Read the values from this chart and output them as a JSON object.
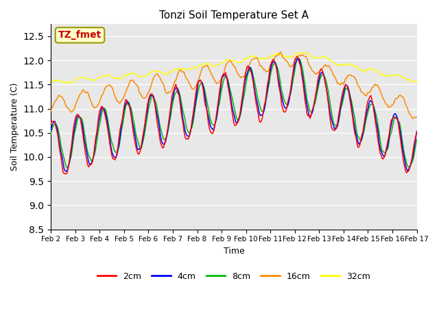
{
  "title": "Tonzi Soil Temperature Set A",
  "xlabel": "Time",
  "ylabel": "Soil Temperature (C)",
  "ylim": [
    8.5,
    12.75
  ],
  "xlim": [
    0,
    360
  ],
  "annotation_text": "TZ_fmet",
  "annotation_bg": "#ffffcc",
  "annotation_border": "#999900",
  "annotation_text_color": "#cc0000",
  "bg_color": "#e8e8e8",
  "series_colors": [
    "#ff0000",
    "#0000ff",
    "#00bb00",
    "#ff8800",
    "#ffff00"
  ],
  "series_labels": [
    "2cm",
    "4cm",
    "8cm",
    "16cm",
    "32cm"
  ],
  "xtick_labels": [
    "Feb 2",
    "Feb 3",
    "Feb 4",
    "Feb 5",
    "Feb 6",
    "Feb 7",
    "Feb 8",
    "Feb 9",
    "Feb 10",
    "Feb 11",
    "Feb 12",
    "Feb 13",
    "Feb 14",
    "Feb 15",
    "Feb 16",
    "Feb 17"
  ],
  "xtick_positions": [
    0,
    24,
    48,
    72,
    96,
    120,
    144,
    168,
    192,
    216,
    240,
    264,
    288,
    312,
    336,
    360
  ]
}
